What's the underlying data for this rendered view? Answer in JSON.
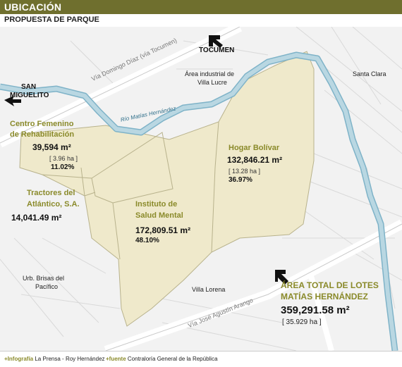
{
  "header": {
    "title": "UBICACIÓN",
    "subtitle": "PROPUESTA DE PARQUE"
  },
  "places": {
    "tocumen": "TOCUMEN",
    "san_miguelito_1": "SAN",
    "san_miguelito_2": "MIGUELITO",
    "santa_clara": "Santa Clara",
    "area_industrial_1": "Área industrial de",
    "area_industrial_2": "Villa Lucre",
    "brisas_1": "Urb. Brisas del",
    "brisas_2": "Pacífico",
    "villa_lorena": "Villa Lorena"
  },
  "roads": {
    "via_domingo": "Vía Domingo Díaz (vía Tocumen)",
    "via_jose": "Vía José Agustín Arango",
    "rio": "Río Matías Hernández"
  },
  "lots": {
    "centro": {
      "name_1": "Centro Femenino",
      "name_2": "de Rehabilitación",
      "area": "39,594 m²",
      "ha": "[ 3.96 ha ]",
      "pct": "11.02%"
    },
    "tractores": {
      "name_1": "Tractores del",
      "name_2": "Atlántico, S.A.",
      "area": "14,041.49 m²"
    },
    "instituto": {
      "name_1": "Instituto de",
      "name_2": "Salud Mental",
      "area": "172,809.51 m²",
      "pct": "48.10%"
    },
    "hogar": {
      "name": "Hogar Bolívar",
      "area": "132,846.21 m²",
      "ha": "[ 13.28 ha ]",
      "pct": "36.97%"
    }
  },
  "total": {
    "label_1": "ÁREA TOTAL DE LOTES",
    "label_2": "MATÍAS HERNÁNDEZ",
    "area": "359,291.58 m²",
    "ha": "[ 35.929 ha ]"
  },
  "footer": {
    "infografia_label": "Infografía",
    "infografia_value": "La Prensa - Roy Hernández",
    "fuente_label": "fuente",
    "fuente_value": "Contraloría General de la República"
  },
  "colors": {
    "band": "#6f6f2e",
    "lot_fill": "#efe9cb",
    "river": "#b9d7e2",
    "river_edge": "#7fb3c8",
    "accent": "#8a8a2a"
  }
}
